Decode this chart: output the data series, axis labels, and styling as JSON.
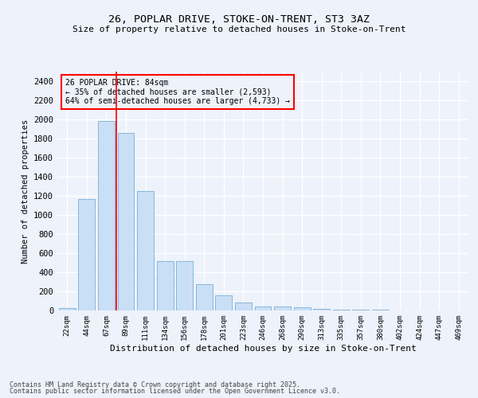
{
  "title1": "26, POPLAR DRIVE, STOKE-ON-TRENT, ST3 3AZ",
  "title2": "Size of property relative to detached houses in Stoke-on-Trent",
  "xlabel": "Distribution of detached houses by size in Stoke-on-Trent",
  "ylabel": "Number of detached properties",
  "categories": [
    "22sqm",
    "44sqm",
    "67sqm",
    "89sqm",
    "111sqm",
    "134sqm",
    "156sqm",
    "178sqm",
    "201sqm",
    "223sqm",
    "246sqm",
    "268sqm",
    "290sqm",
    "313sqm",
    "335sqm",
    "357sqm",
    "380sqm",
    "402sqm",
    "424sqm",
    "447sqm",
    "469sqm"
  ],
  "values": [
    25,
    1170,
    1980,
    1860,
    1250,
    520,
    520,
    275,
    155,
    85,
    45,
    45,
    33,
    15,
    5,
    5,
    5,
    3,
    2,
    1,
    1
  ],
  "bar_color": "#c9dff5",
  "bar_edge_color": "#7bafd4",
  "ylim": [
    0,
    2500
  ],
  "yticks": [
    0,
    200,
    400,
    600,
    800,
    1000,
    1200,
    1400,
    1600,
    1800,
    2000,
    2200,
    2400
  ],
  "vline_color": "red",
  "vline_pos": 2.5,
  "annotation_text": "26 POPLAR DRIVE: 84sqm\n← 35% of detached houses are smaller (2,593)\n64% of semi-detached houses are larger (4,733) →",
  "annotation_box_color": "red",
  "footer1": "Contains HM Land Registry data © Crown copyright and database right 2025.",
  "footer2": "Contains public sector information licensed under the Open Government Licence v3.0.",
  "bg_color": "#edf2fb",
  "grid_color": "white"
}
